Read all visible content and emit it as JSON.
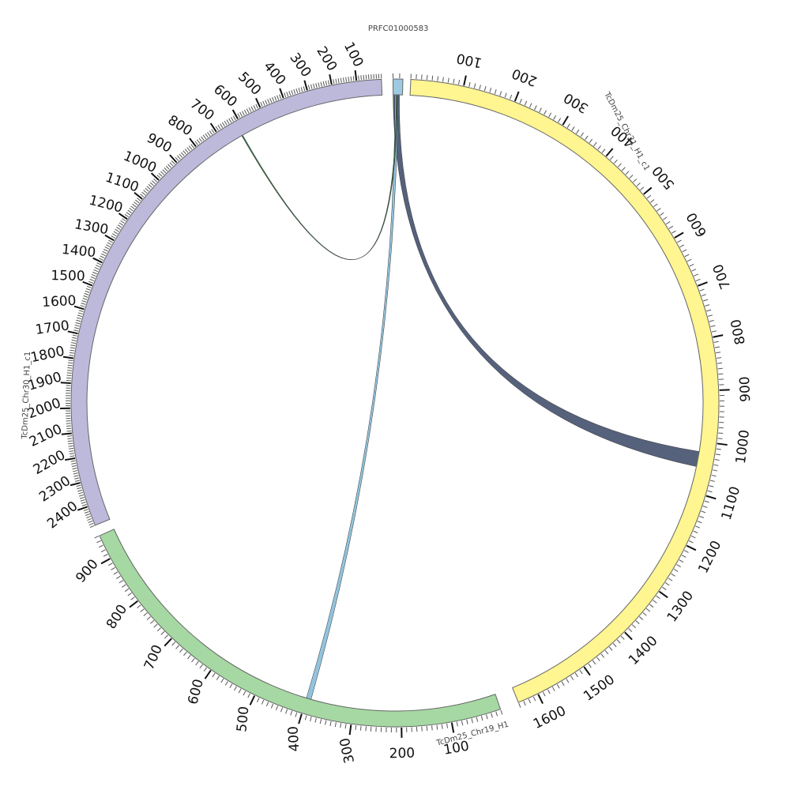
{
  "chart_data": {
    "type": "chord",
    "segments": [
      {
        "name": "PRFC01000583",
        "length": 15,
        "color": "#9ecae1",
        "tick_step": 100,
        "tick_labels": []
      },
      {
        "name": "TcDm25_Chr31_H1_c1",
        "length": 1640,
        "color": "#fff591",
        "tick_step": 100,
        "tick_labels": [
          "100",
          "200",
          "300",
          "400",
          "500",
          "600",
          "700",
          "800",
          "900",
          "1000",
          "1100",
          "1200",
          "1300",
          "1400",
          "1500",
          "1600"
        ]
      },
      {
        "name": "TcDm25_Chr19_H1",
        "length": 950,
        "color": "#a6d8a3",
        "tick_step": 100,
        "tick_labels": [
          "100",
          "200",
          "300",
          "400",
          "500",
          "600",
          "700",
          "800",
          "900"
        ]
      },
      {
        "name": "TcDm25_Chr30_H1_c1",
        "length": 2480,
        "color": "#bcb9db",
        "tick_step": 100,
        "tick_labels": [
          "100",
          "200",
          "300",
          "400",
          "500",
          "600",
          "700",
          "800",
          "900",
          "1000",
          "1100",
          "1200",
          "1300",
          "1400",
          "1500",
          "1600",
          "1700",
          "1800",
          "1900",
          "2000",
          "2100",
          "2200",
          "2300",
          "2400"
        ]
      }
    ],
    "links": [
      {
        "from": "PRFC01000583",
        "from_range": [
          0,
          10
        ],
        "to": "TcDm25_Chr31_H1_c1",
        "to_range": [
          1020,
          1050
        ],
        "color": "#4d5975"
      },
      {
        "from": "PRFC01000583",
        "from_range": [
          3,
          8
        ],
        "to": "TcDm25_Chr19_H1",
        "to_range": [
          390,
          400
        ],
        "color": "#8cc1dc"
      },
      {
        "from": "PRFC01000583",
        "from_range": [
          5,
          7
        ],
        "to": "TcDm25_Chr30_H1_c1",
        "to_range": [
          615,
          620
        ],
        "color": "#2d6a3e"
      }
    ]
  }
}
